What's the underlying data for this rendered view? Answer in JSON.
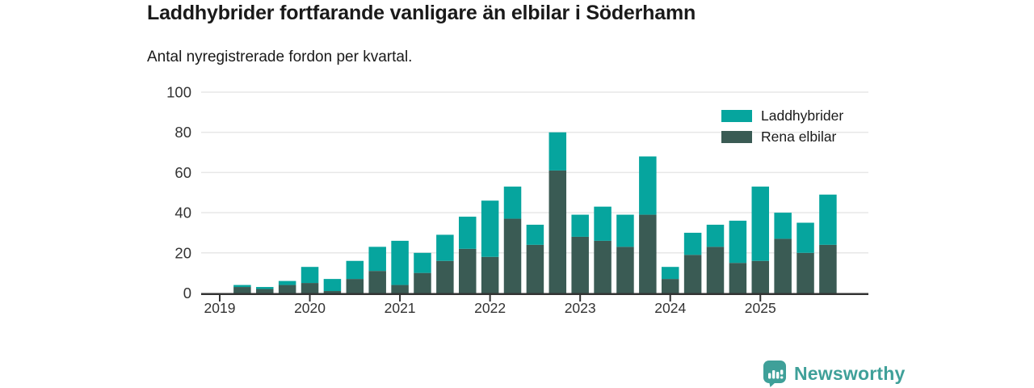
{
  "header": {
    "title": "Laddhybrider fortfarande vanligare än elbilar i Söderhamn",
    "subtitle": "Antal nyregistrerade fordon per kvartal."
  },
  "colors": {
    "laddhybrider": "#06a59e",
    "rena_elbilar": "#3a5b54",
    "axis": "#333333",
    "grid": "#e7e7e7",
    "tick_text": "#333333",
    "title_text": "#1a1a1a",
    "logo": "#3fa099"
  },
  "legend": {
    "items": [
      {
        "label": "Laddhybrider",
        "color_key": "laddhybrider"
      },
      {
        "label": "Rena elbilar",
        "color_key": "rena_elbilar"
      }
    ]
  },
  "chart_data": {
    "type": "bar",
    "stacked": true,
    "title": "Laddhybrider fortfarande vanligare än elbilar i Söderhamn",
    "subtitle": "Antal nyregistrerade fordon per kvartal.",
    "categories": [
      "2019 Q1",
      "2019 Q2",
      "2019 Q3",
      "2019 Q4",
      "2020 Q1",
      "2020 Q2",
      "2020 Q3",
      "2020 Q4",
      "2021 Q1",
      "2021 Q2",
      "2021 Q3",
      "2021 Q4",
      "2022 Q1",
      "2022 Q2",
      "2022 Q3",
      "2022 Q4",
      "2023 Q1",
      "2023 Q2",
      "2023 Q3",
      "2023 Q4",
      "2024 Q1",
      "2024 Q2",
      "2024 Q3",
      "2024 Q4",
      "2025 Q1",
      "2025 Q2",
      "2025 Q3",
      "2025 Q4"
    ],
    "x_tick_labels": [
      "2019",
      "2020",
      "2021",
      "2022",
      "2023",
      "2024",
      "2025"
    ],
    "series": [
      {
        "name": "Rena elbilar",
        "color_key": "rena_elbilar",
        "values": [
          0,
          3,
          2,
          4,
          5,
          1,
          7,
          11,
          4,
          10,
          16,
          22,
          18,
          37,
          24,
          61,
          28,
          26,
          23,
          39,
          7,
          19,
          23,
          15,
          16,
          27,
          20,
          24
        ]
      },
      {
        "name": "Laddhybrider",
        "color_key": "laddhybrider",
        "values": [
          0,
          1,
          1,
          2,
          8,
          6,
          9,
          12,
          22,
          10,
          13,
          16,
          28,
          16,
          10,
          19,
          11,
          17,
          16,
          29,
          6,
          11,
          11,
          21,
          37,
          13,
          15,
          25
        ]
      }
    ],
    "totals": [
      0,
      4,
      3,
      6,
      13,
      7,
      16,
      23,
      26,
      20,
      29,
      38,
      46,
      53,
      34,
      80,
      39,
      43,
      39,
      68,
      13,
      30,
      34,
      36,
      53,
      40,
      35,
      49
    ],
    "ylim": [
      0,
      100
    ],
    "yticks": [
      0,
      20,
      40,
      60,
      80,
      100
    ],
    "xlabel": "",
    "ylabel": "",
    "grid": true,
    "legend_position": "top-right"
  },
  "footer": {
    "brand": "Newsworthy"
  }
}
